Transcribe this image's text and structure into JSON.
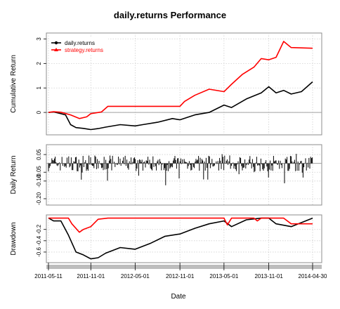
{
  "chart_data": {
    "type": "line",
    "title": "daily.returns Performance",
    "xlabel": "Date",
    "x_ticks": [
      "2011-05-11",
      "2011-11-01",
      "2012-05-01",
      "2012-11-01",
      "2013-05-01",
      "2013-11-01",
      "2014-04-30"
    ],
    "x_range": [
      "2011-05-11",
      "2014-04-30"
    ],
    "legend": {
      "position": "top-left",
      "entries": [
        {
          "name": "daily.returns",
          "color": "#000000",
          "marker": "circle"
        },
        {
          "name": "strategy.returns",
          "color": "#ff0000",
          "marker": "triangle"
        }
      ]
    },
    "grid": true,
    "panels": [
      {
        "name": "cumulative",
        "ylabel": "Cumulative Return",
        "ylim": [
          -0.8,
          3.1
        ],
        "yticks": [
          "0",
          "1",
          "2",
          "3"
        ],
        "reference_line": 0,
        "series": [
          {
            "name": "daily.returns",
            "color": "#000000",
            "points": [
              [
                "2011-05-11",
                0.0
              ],
              [
                "2011-06-01",
                0.02
              ],
              [
                "2011-07-01",
                -0.05
              ],
              [
                "2011-07-20",
                -0.1
              ],
              [
                "2011-08-10",
                -0.5
              ],
              [
                "2011-09-01",
                -0.62
              ],
              [
                "2011-10-01",
                -0.65
              ],
              [
                "2011-11-01",
                -0.7
              ],
              [
                "2011-12-01",
                -0.66
              ],
              [
                "2012-01-01",
                -0.6
              ],
              [
                "2012-03-01",
                -0.5
              ],
              [
                "2012-05-01",
                -0.55
              ],
              [
                "2012-06-01",
                -0.5
              ],
              [
                "2012-08-01",
                -0.4
              ],
              [
                "2012-10-01",
                -0.25
              ],
              [
                "2012-11-01",
                -0.3
              ],
              [
                "2013-01-01",
                -0.1
              ],
              [
                "2013-03-01",
                0.0
              ],
              [
                "2013-05-01",
                0.3
              ],
              [
                "2013-06-01",
                0.2
              ],
              [
                "2013-08-01",
                0.55
              ],
              [
                "2013-10-01",
                0.8
              ],
              [
                "2013-11-01",
                1.05
              ],
              [
                "2013-12-01",
                0.8
              ],
              [
                "2014-01-01",
                0.9
              ],
              [
                "2014-02-01",
                0.75
              ],
              [
                "2014-03-15",
                0.85
              ],
              [
                "2014-04-30",
                1.25
              ]
            ]
          },
          {
            "name": "strategy.returns",
            "color": "#ff0000",
            "points": [
              [
                "2011-05-11",
                0.0
              ],
              [
                "2011-06-01",
                0.03
              ],
              [
                "2011-07-01",
                0.01
              ],
              [
                "2011-08-10",
                -0.1
              ],
              [
                "2011-09-15",
                -0.25
              ],
              [
                "2011-10-15",
                -0.18
              ],
              [
                "2011-11-01",
                -0.05
              ],
              [
                "2011-12-15",
                0.02
              ],
              [
                "2012-01-10",
                0.25
              ],
              [
                "2012-11-01",
                0.25
              ],
              [
                "2012-11-20",
                0.45
              ],
              [
                "2013-01-01",
                0.7
              ],
              [
                "2013-03-01",
                0.95
              ],
              [
                "2013-05-01",
                0.85
              ],
              [
                "2013-06-01",
                1.15
              ],
              [
                "2013-07-15",
                1.55
              ],
              [
                "2013-09-01",
                1.85
              ],
              [
                "2013-10-01",
                2.2
              ],
              [
                "2013-11-01",
                2.15
              ],
              [
                "2013-12-01",
                2.25
              ],
              [
                "2014-01-01",
                2.9
              ],
              [
                "2014-02-01",
                2.65
              ],
              [
                "2014-04-30",
                2.62
              ]
            ]
          }
        ]
      },
      {
        "name": "daily",
        "ylabel": "Daily Return",
        "ylim": [
          -0.22,
          0.09
        ],
        "yticks": [
          "0.05",
          "-0.05",
          "-0.10",
          "-0.20"
        ],
        "reference_line": 0,
        "series": [
          {
            "name": "daily.returns",
            "color": "#000000",
            "type": "bar"
          }
        ]
      },
      {
        "name": "drawdown",
        "ylabel": "Drawdown",
        "ylim": [
          -0.75,
          0.02
        ],
        "yticks": [
          "-0.2",
          "-0.4",
          "-0.6"
        ],
        "series": [
          {
            "name": "daily.returns",
            "color": "#000000",
            "points": [
              [
                "2011-05-11",
                0.0
              ],
              [
                "2011-06-01",
                -0.05
              ],
              [
                "2011-07-01",
                -0.05
              ],
              [
                "2011-08-01",
                -0.3
              ],
              [
                "2011-09-01",
                -0.6
              ],
              [
                "2011-10-01",
                -0.65
              ],
              [
                "2011-11-01",
                -0.72
              ],
              [
                "2011-12-01",
                -0.7
              ],
              [
                "2012-01-01",
                -0.62
              ],
              [
                "2012-03-01",
                -0.52
              ],
              [
                "2012-05-01",
                -0.55
              ],
              [
                "2012-07-01",
                -0.45
              ],
              [
                "2012-09-01",
                -0.32
              ],
              [
                "2012-11-01",
                -0.28
              ],
              [
                "2013-01-01",
                -0.18
              ],
              [
                "2013-03-01",
                -0.1
              ],
              [
                "2013-05-01",
                -0.05
              ],
              [
                "2013-06-01",
                -0.15
              ],
              [
                "2013-08-01",
                -0.03
              ],
              [
                "2013-10-01",
                0.0
              ],
              [
                "2013-11-01",
                0.0
              ],
              [
                "2013-12-01",
                -0.1
              ],
              [
                "2014-02-01",
                -0.15
              ],
              [
                "2014-04-01",
                -0.05
              ],
              [
                "2014-04-30",
                0.0
              ]
            ]
          },
          {
            "name": "strategy.returns",
            "color": "#ff0000",
            "points": [
              [
                "2011-05-11",
                0.0
              ],
              [
                "2011-08-01",
                0.0
              ],
              [
                "2011-08-15",
                -0.1
              ],
              [
                "2011-09-15",
                -0.25
              ],
              [
                "2011-10-01",
                -0.2
              ],
              [
                "2011-11-01",
                -0.15
              ],
              [
                "2011-12-01",
                -0.02
              ],
              [
                "2012-01-10",
                0.0
              ],
              [
                "2013-05-01",
                0.0
              ],
              [
                "2013-05-15",
                -0.12
              ],
              [
                "2013-06-01",
                0.0
              ],
              [
                "2013-09-01",
                0.0
              ],
              [
                "2013-09-15",
                -0.05
              ],
              [
                "2013-10-01",
                0.0
              ],
              [
                "2013-12-01",
                0.0
              ],
              [
                "2014-01-01",
                0.0
              ],
              [
                "2014-02-01",
                -0.1
              ],
              [
                "2014-04-30",
                -0.1
              ]
            ]
          }
        ]
      }
    ]
  }
}
